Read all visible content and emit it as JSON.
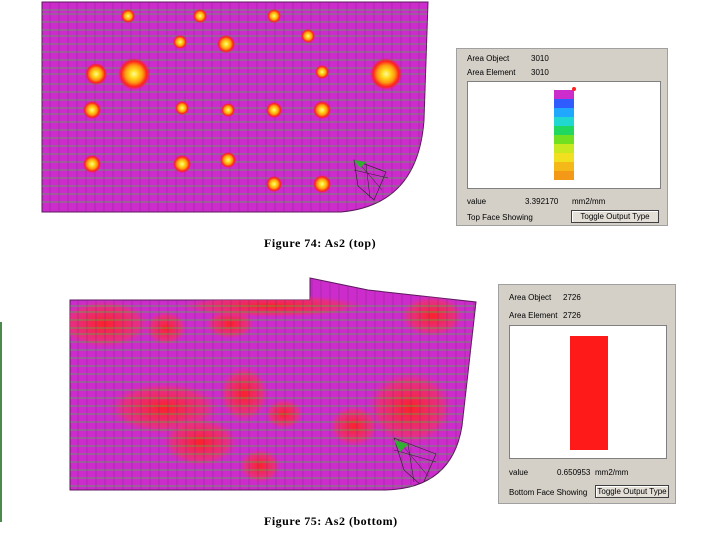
{
  "figure_top": {
    "caption": "Figure 74: As2 (top)",
    "panel": {
      "area_object_label": "Area Object",
      "area_object_value": "3010",
      "area_element_label": "Area Element",
      "area_element_value": "3010",
      "value_label": "value",
      "value": "3.392170",
      "unit": "mm2/mm",
      "face_label": "Top Face Showing",
      "toggle_button": "Toggle Output Type",
      "gradient_colors": [
        "#cc2ccc",
        "#2f5cff",
        "#20a8ff",
        "#20d8d0",
        "#20d860",
        "#70e020",
        "#c8e820",
        "#f0e020",
        "#f4b818",
        "#f49818"
      ]
    }
  },
  "figure_bottom": {
    "caption": "Figure 75: As2 (bottom)",
    "panel": {
      "area_object_label": "Area Object",
      "area_object_value": "2726",
      "area_element_label": "Area Element",
      "area_element_value": "2726",
      "value_label": "value",
      "value": "0.650953",
      "unit": "mm2/mm",
      "face_label": "Bottom Face Showing",
      "toggle_button": "Toggle Output Type",
      "bar_color": "#ff1a1a"
    }
  },
  "colors": {
    "slab_magenta": "#cc2ccc",
    "grid_green": "#38c838",
    "hotspot_red": "#ff2020",
    "hotspot_orange": "#ff9a10",
    "hotspot_yellow": "#ffe020"
  }
}
